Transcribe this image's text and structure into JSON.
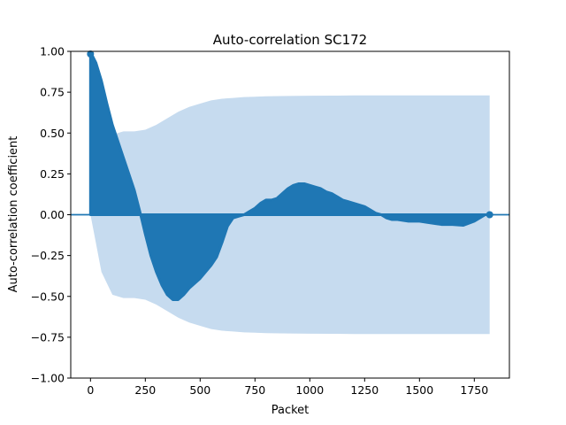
{
  "chart_data": {
    "type": "area",
    "title": "Auto-correlation SC172",
    "xlabel": "Packet",
    "ylabel": "Auto-correlation coefficient",
    "xlim": [
      -90,
      1910
    ],
    "ylim": [
      -1.0,
      1.0
    ],
    "xticks": [
      0,
      250,
      500,
      750,
      1000,
      1250,
      1500,
      1750
    ],
    "yticks": [
      -1.0,
      -0.75,
      -0.5,
      -0.25,
      0.0,
      0.25,
      0.5,
      0.75,
      1.0
    ],
    "xtick_labels": [
      "0",
      "250",
      "500",
      "750",
      "1000",
      "1250",
      "1500",
      "1750"
    ],
    "ytick_labels": [
      "−1.00",
      "−0.75",
      "−0.50",
      "−0.25",
      "0.00",
      "0.25",
      "0.50",
      "0.75",
      "1.00"
    ],
    "grid": false,
    "colors": {
      "acf": "#1f77b4",
      "confidence_band": "#c6dbef"
    },
    "confidence_band": {
      "x": [
        0,
        50,
        100,
        150,
        200,
        250,
        300,
        350,
        400,
        450,
        500,
        550,
        600,
        650,
        700,
        750,
        800,
        900,
        1000,
        1100,
        1200,
        1300,
        1400,
        1500,
        1600,
        1700,
        1820
      ],
      "upper": [
        0.0,
        0.35,
        0.49,
        0.51,
        0.51,
        0.52,
        0.55,
        0.59,
        0.63,
        0.66,
        0.68,
        0.7,
        0.71,
        0.715,
        0.72,
        0.722,
        0.725,
        0.727,
        0.728,
        0.729,
        0.73,
        0.73,
        0.73,
        0.73,
        0.73,
        0.73,
        0.73
      ]
    },
    "series": [
      {
        "x": [
          0,
          10,
          25,
          50,
          75,
          100,
          125,
          150,
          175,
          200,
          225,
          250,
          275,
          300,
          325,
          350,
          375,
          400,
          425,
          450,
          475,
          500,
          525,
          550,
          575,
          600,
          625,
          650,
          675,
          700,
          725,
          750,
          775,
          800,
          825,
          850,
          875,
          900,
          925,
          950,
          975,
          1000,
          1025,
          1050,
          1075,
          1100,
          1125,
          1150,
          1175,
          1200,
          1225,
          1250,
          1275,
          1300,
          1325,
          1350,
          1375,
          1400,
          1450,
          1500,
          1550,
          1600,
          1650,
          1700,
          1750,
          1800,
          1820
        ],
        "values": [
          1.0,
          0.97,
          0.93,
          0.82,
          0.68,
          0.55,
          0.45,
          0.35,
          0.25,
          0.15,
          0.02,
          -0.12,
          -0.25,
          -0.35,
          -0.43,
          -0.49,
          -0.52,
          -0.52,
          -0.49,
          -0.45,
          -0.42,
          -0.39,
          -0.35,
          -0.31,
          -0.26,
          -0.17,
          -0.07,
          -0.02,
          -0.01,
          0.0,
          0.02,
          0.04,
          0.07,
          0.09,
          0.09,
          0.1,
          0.13,
          0.16,
          0.18,
          0.19,
          0.19,
          0.18,
          0.17,
          0.16,
          0.14,
          0.13,
          0.11,
          0.09,
          0.08,
          0.07,
          0.06,
          0.05,
          0.03,
          0.01,
          0.0,
          -0.02,
          -0.03,
          -0.03,
          -0.04,
          -0.04,
          -0.05,
          -0.06,
          -0.06,
          -0.065,
          -0.04,
          0.0,
          0.0
        ]
      }
    ]
  }
}
